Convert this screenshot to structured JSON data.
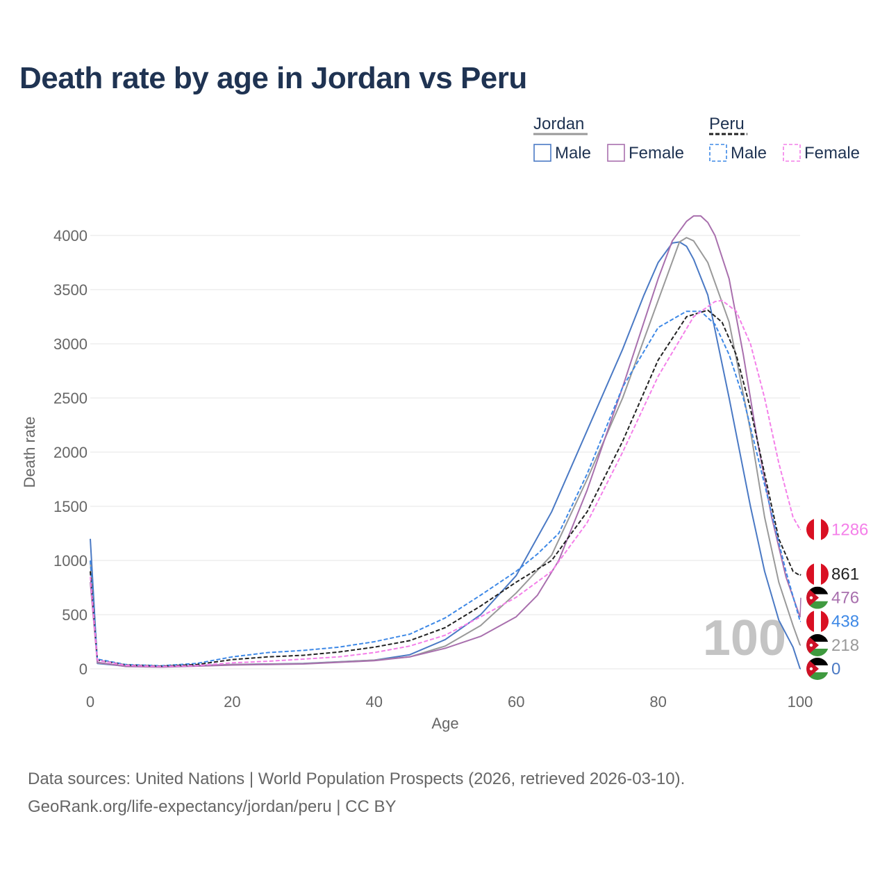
{
  "title": "Death rate by age in Jordan vs Peru",
  "legend": {
    "groups": [
      {
        "name": "Jordan",
        "entries": [
          {
            "label": "Male",
            "color": "#4a79c4",
            "dashed": false
          },
          {
            "label": "Female",
            "color": "#a86fad",
            "dashed": false
          }
        ],
        "underline_color": "#999999",
        "underline_dashed": false
      },
      {
        "name": "Peru",
        "entries": [
          {
            "label": "Male",
            "color": "#3d88e6",
            "dashed": true
          },
          {
            "label": "Female",
            "color": "#f47fe9",
            "dashed": true
          }
        ],
        "underline_color": "#222222",
        "underline_dashed": true
      }
    ]
  },
  "chart_data": {
    "type": "line",
    "xlabel": "Age",
    "ylabel": "Death rate",
    "xlim": [
      0,
      100
    ],
    "ylim": [
      0,
      4000
    ],
    "xticks": [
      0,
      20,
      40,
      60,
      80,
      100
    ],
    "yticks": [
      0,
      500,
      1000,
      1500,
      2000,
      2500,
      3000,
      3500,
      4000
    ],
    "grid": true,
    "watermark": "100",
    "series": [
      {
        "name": "Jordan Male",
        "color": "#4a79c4",
        "dashed": false,
        "end_label": "0",
        "flag": "jordan",
        "points": [
          [
            0,
            1200
          ],
          [
            1,
            50
          ],
          [
            5,
            25
          ],
          [
            10,
            20
          ],
          [
            15,
            30
          ],
          [
            20,
            40
          ],
          [
            30,
            50
          ],
          [
            40,
            80
          ],
          [
            45,
            130
          ],
          [
            50,
            270
          ],
          [
            55,
            500
          ],
          [
            60,
            860
          ],
          [
            65,
            1450
          ],
          [
            70,
            2200
          ],
          [
            75,
            2950
          ],
          [
            78,
            3450
          ],
          [
            80,
            3750
          ],
          [
            82,
            3930
          ],
          [
            83,
            3940
          ],
          [
            84,
            3900
          ],
          [
            85,
            3780
          ],
          [
            87,
            3450
          ],
          [
            90,
            2500
          ],
          [
            93,
            1500
          ],
          [
            95,
            900
          ],
          [
            97,
            450
          ],
          [
            99,
            200
          ],
          [
            100,
            0
          ]
        ]
      },
      {
        "name": "Jordan Both",
        "color": "#999999",
        "dashed": false,
        "end_label": "218",
        "flag": "jordan",
        "points": [
          [
            0,
            1000
          ],
          [
            1,
            55
          ],
          [
            5,
            25
          ],
          [
            10,
            18
          ],
          [
            15,
            28
          ],
          [
            20,
            40
          ],
          [
            30,
            48
          ],
          [
            40,
            80
          ],
          [
            45,
            110
          ],
          [
            50,
            210
          ],
          [
            55,
            400
          ],
          [
            60,
            700
          ],
          [
            65,
            1050
          ],
          [
            70,
            1750
          ],
          [
            75,
            2500
          ],
          [
            80,
            3400
          ],
          [
            83,
            3940
          ],
          [
            84,
            3980
          ],
          [
            85,
            3950
          ],
          [
            87,
            3750
          ],
          [
            90,
            3200
          ],
          [
            93,
            2200
          ],
          [
            95,
            1400
          ],
          [
            97,
            800
          ],
          [
            99,
            400
          ],
          [
            100,
            218
          ]
        ]
      },
      {
        "name": "Jordan Female",
        "color": "#a86fad",
        "dashed": false,
        "end_label": "476",
        "flag": "jordan",
        "points": [
          [
            0,
            800
          ],
          [
            1,
            60
          ],
          [
            5,
            22
          ],
          [
            10,
            16
          ],
          [
            15,
            25
          ],
          [
            20,
            35
          ],
          [
            30,
            45
          ],
          [
            40,
            75
          ],
          [
            45,
            110
          ],
          [
            50,
            190
          ],
          [
            55,
            300
          ],
          [
            60,
            480
          ],
          [
            63,
            680
          ],
          [
            66,
            1000
          ],
          [
            70,
            1650
          ],
          [
            75,
            2600
          ],
          [
            80,
            3600
          ],
          [
            82,
            3950
          ],
          [
            84,
            4130
          ],
          [
            85,
            4180
          ],
          [
            86,
            4180
          ],
          [
            87,
            4120
          ],
          [
            88,
            4000
          ],
          [
            90,
            3600
          ],
          [
            92,
            2900
          ],
          [
            94,
            2100
          ],
          [
            96,
            1400
          ],
          [
            98,
            850
          ],
          [
            100,
            476
          ]
        ]
      },
      {
        "name": "Peru Male",
        "color": "#3d88e6",
        "dashed": true,
        "end_label": "438",
        "flag": "peru",
        "points": [
          [
            0,
            1000
          ],
          [
            1,
            90
          ],
          [
            5,
            40
          ],
          [
            10,
            28
          ],
          [
            15,
            50
          ],
          [
            20,
            110
          ],
          [
            25,
            150
          ],
          [
            30,
            170
          ],
          [
            35,
            200
          ],
          [
            40,
            250
          ],
          [
            45,
            320
          ],
          [
            50,
            470
          ],
          [
            55,
            680
          ],
          [
            60,
            900
          ],
          [
            63,
            1060
          ],
          [
            66,
            1250
          ],
          [
            70,
            1800
          ],
          [
            75,
            2600
          ],
          [
            80,
            3150
          ],
          [
            84,
            3300
          ],
          [
            86,
            3300
          ],
          [
            88,
            3180
          ],
          [
            90,
            2900
          ],
          [
            92,
            2500
          ],
          [
            95,
            1700
          ],
          [
            98,
            900
          ],
          [
            100,
            438
          ]
        ]
      },
      {
        "name": "Peru Both",
        "color": "#222222",
        "dashed": true,
        "end_label": "861",
        "flag": "peru",
        "points": [
          [
            0,
            900
          ],
          [
            1,
            80
          ],
          [
            5,
            35
          ],
          [
            10,
            25
          ],
          [
            15,
            40
          ],
          [
            20,
            85
          ],
          [
            25,
            110
          ],
          [
            30,
            125
          ],
          [
            35,
            155
          ],
          [
            40,
            200
          ],
          [
            45,
            260
          ],
          [
            50,
            380
          ],
          [
            55,
            580
          ],
          [
            60,
            800
          ],
          [
            65,
            1000
          ],
          [
            70,
            1450
          ],
          [
            75,
            2100
          ],
          [
            80,
            2850
          ],
          [
            84,
            3250
          ],
          [
            87,
            3310
          ],
          [
            89,
            3200
          ],
          [
            91,
            2900
          ],
          [
            93,
            2400
          ],
          [
            95,
            1800
          ],
          [
            97,
            1200
          ],
          [
            99,
            900
          ],
          [
            100,
            861
          ]
        ]
      },
      {
        "name": "Peru Female",
        "color": "#f47fe9",
        "dashed": true,
        "end_label": "1286",
        "flag": "peru",
        "points": [
          [
            0,
            850
          ],
          [
            1,
            80
          ],
          [
            5,
            32
          ],
          [
            10,
            22
          ],
          [
            15,
            30
          ],
          [
            20,
            55
          ],
          [
            25,
            70
          ],
          [
            30,
            90
          ],
          [
            35,
            110
          ],
          [
            40,
            150
          ],
          [
            45,
            210
          ],
          [
            50,
            310
          ],
          [
            55,
            480
          ],
          [
            60,
            660
          ],
          [
            65,
            900
          ],
          [
            70,
            1350
          ],
          [
            75,
            2000
          ],
          [
            80,
            2700
          ],
          [
            85,
            3250
          ],
          [
            88,
            3390
          ],
          [
            89,
            3400
          ],
          [
            91,
            3300
          ],
          [
            93,
            3000
          ],
          [
            95,
            2500
          ],
          [
            97,
            1900
          ],
          [
            99,
            1400
          ],
          [
            100,
            1286
          ]
        ]
      }
    ]
  },
  "footer": {
    "line1": "Data sources: United Nations | World Population Prospects (2026, retrieved 2026-03-10).",
    "line2": "GeoRank.org/life-expectancy/jordan/peru | CC BY"
  }
}
